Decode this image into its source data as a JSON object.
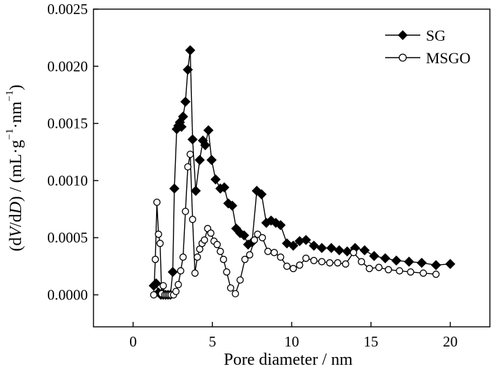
{
  "chart_data": {
    "type": "line",
    "xlabel": "Pore diameter / nm",
    "ylabel_parts": [
      "(d",
      "V",
      "/d",
      "D",
      ") / (mL·g",
      "−1",
      "·nm",
      "−1",
      ")"
    ],
    "xlim": [
      -2.5,
      22.5
    ],
    "ylim": [
      -0.00028,
      0.0025
    ],
    "x_ticks": [
      0,
      5,
      10,
      15,
      20
    ],
    "x_tick_labels": [
      "0",
      "5",
      "10",
      "15",
      "20"
    ],
    "y_ticks": [
      0,
      0.0005,
      0.001,
      0.0015,
      0.002,
      0.0025
    ],
    "y_tick_labels": [
      "0.0000",
      "0.0005",
      "0.0010",
      "0.0015",
      "0.0020",
      "0.0025"
    ],
    "grid": false,
    "legend_position": "top-right",
    "series": [
      {
        "name": "SG",
        "marker": "filled-diamond",
        "color": "#000000",
        "x": [
          1.3,
          1.45,
          1.6,
          1.75,
          1.9,
          2.05,
          2.2,
          2.35,
          2.5,
          2.6,
          2.75,
          2.85,
          2.95,
          3.05,
          3.15,
          3.3,
          3.45,
          3.6,
          3.75,
          3.95,
          4.2,
          4.4,
          4.55,
          4.75,
          4.95,
          5.2,
          5.5,
          5.75,
          6.0,
          6.25,
          6.5,
          6.75,
          7.0,
          7.25,
          7.5,
          7.8,
          8.1,
          8.4,
          8.7,
          9.0,
          9.3,
          9.7,
          10.1,
          10.5,
          10.9,
          11.4,
          11.9,
          12.5,
          13.0,
          13.5,
          14.0,
          14.6,
          15.2,
          15.9,
          16.6,
          17.4,
          18.2,
          19.1,
          20.0
        ],
        "values": [
          8e-05,
          0.0001,
          2e-05,
          0.0,
          0.0,
          0.0,
          0.0,
          0.0,
          0.0002,
          0.00093,
          0.00145,
          0.00148,
          0.00151,
          0.00147,
          0.00156,
          0.00169,
          0.00197,
          0.00214,
          0.00136,
          0.00091,
          0.00118,
          0.00135,
          0.00131,
          0.00144,
          0.00118,
          0.00101,
          0.00093,
          0.00094,
          0.0008,
          0.00078,
          0.00058,
          0.00054,
          0.00052,
          0.00044,
          0.00046,
          0.00091,
          0.00088,
          0.00063,
          0.00065,
          0.00063,
          0.00061,
          0.00045,
          0.00043,
          0.00047,
          0.00048,
          0.00043,
          0.00041,
          0.00041,
          0.00039,
          0.00038,
          0.00041,
          0.00039,
          0.00034,
          0.00032,
          0.0003,
          0.00029,
          0.00028,
          0.00026,
          0.00027
        ]
      },
      {
        "name": "MSGO",
        "marker": "open-circle",
        "color": "#000000",
        "x": [
          1.3,
          1.4,
          1.5,
          1.6,
          1.7,
          1.8,
          1.9,
          2.0,
          2.1,
          2.2,
          2.3,
          2.4,
          2.55,
          2.7,
          2.85,
          3.0,
          3.15,
          3.3,
          3.45,
          3.6,
          3.75,
          3.9,
          4.05,
          4.2,
          4.35,
          4.5,
          4.7,
          4.9,
          5.1,
          5.3,
          5.5,
          5.7,
          5.9,
          6.15,
          6.45,
          6.75,
          7.05,
          7.35,
          7.65,
          7.85,
          8.15,
          8.5,
          8.9,
          9.3,
          9.7,
          10.1,
          10.5,
          10.9,
          11.4,
          11.9,
          12.4,
          12.9,
          13.4,
          13.9,
          14.4,
          14.9,
          15.5,
          16.1,
          16.8,
          17.5,
          18.3,
          19.1
        ],
        "values": [
          0.0,
          0.00031,
          0.00081,
          0.00053,
          0.00045,
          1e-05,
          8e-05,
          0.0,
          0.0,
          0.0,
          0.0,
          0.0,
          0.0,
          3e-05,
          9e-05,
          0.00021,
          0.00033,
          0.00073,
          0.00112,
          0.00123,
          0.00066,
          0.00019,
          0.00033,
          0.0004,
          0.00045,
          0.00048,
          0.00058,
          0.00054,
          0.00047,
          0.00044,
          0.00038,
          0.00031,
          0.0002,
          6e-05,
          1e-05,
          0.00013,
          0.00031,
          0.00035,
          0.00048,
          0.00053,
          0.0005,
          0.00038,
          0.00037,
          0.00033,
          0.00025,
          0.00023,
          0.00026,
          0.00032,
          0.0003,
          0.00029,
          0.00028,
          0.00028,
          0.00027,
          0.00037,
          0.00029,
          0.00023,
          0.00024,
          0.00022,
          0.00021,
          0.0002,
          0.00019,
          0.00018
        ]
      }
    ]
  }
}
